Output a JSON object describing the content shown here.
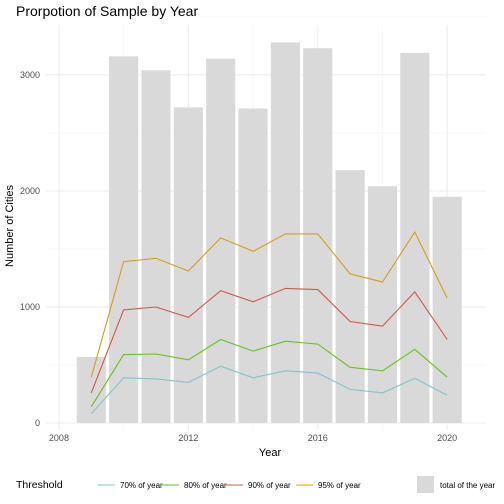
{
  "chart_data": {
    "type": "bar",
    "title": "Prorpotion of Sample by Year",
    "xlabel": "Year",
    "ylabel": "Number of Cities",
    "xlim": [
      2007.6,
      2021.2
    ],
    "ylim": [
      -60,
      3430
    ],
    "x_ticks": [
      2008,
      2012,
      2016,
      2020
    ],
    "y_ticks": [
      0,
      1000,
      2000,
      3000
    ],
    "grid": true,
    "legend_position": "bottom",
    "legend_title": "Threshold",
    "bars": {
      "name": "total of the year",
      "color": "#d9d9d9",
      "x": [
        2009,
        2010,
        2011,
        2012,
        2013,
        2014,
        2015,
        2016,
        2017,
        2018,
        2019,
        2020
      ],
      "values": [
        570,
        3160,
        3040,
        2720,
        3140,
        2710,
        3280,
        3230,
        2180,
        2040,
        3190,
        1950
      ]
    },
    "series": [
      {
        "name": "70% of year",
        "color": "#7fc4cf",
        "x": [
          2009,
          2010,
          2011,
          2012,
          2013,
          2014,
          2015,
          2016,
          2017,
          2018,
          2019,
          2020
        ],
        "values": [
          80,
          390,
          380,
          350,
          490,
          390,
          450,
          430,
          290,
          260,
          385,
          240
        ]
      },
      {
        "name": "80% of year",
        "color": "#66c21b",
        "x": [
          2009,
          2010,
          2011,
          2012,
          2013,
          2014,
          2015,
          2016,
          2017,
          2018,
          2019,
          2020
        ],
        "values": [
          140,
          590,
          595,
          545,
          720,
          620,
          705,
          680,
          480,
          450,
          635,
          395
        ]
      },
      {
        "name": "90% of year",
        "color": "#d0574a",
        "x": [
          2009,
          2010,
          2011,
          2012,
          2013,
          2014,
          2015,
          2016,
          2017,
          2018,
          2019,
          2020
        ],
        "values": [
          260,
          975,
          1000,
          910,
          1140,
          1045,
          1160,
          1150,
          875,
          835,
          1130,
          720
        ]
      },
      {
        "name": "95% of year",
        "color": "#d4a012",
        "x": [
          2009,
          2010,
          2011,
          2012,
          2013,
          2014,
          2015,
          2016,
          2017,
          2018,
          2019,
          2020
        ],
        "values": [
          395,
          1390,
          1420,
          1310,
          1595,
          1480,
          1630,
          1630,
          1285,
          1215,
          1645,
          1075
        ]
      }
    ]
  }
}
